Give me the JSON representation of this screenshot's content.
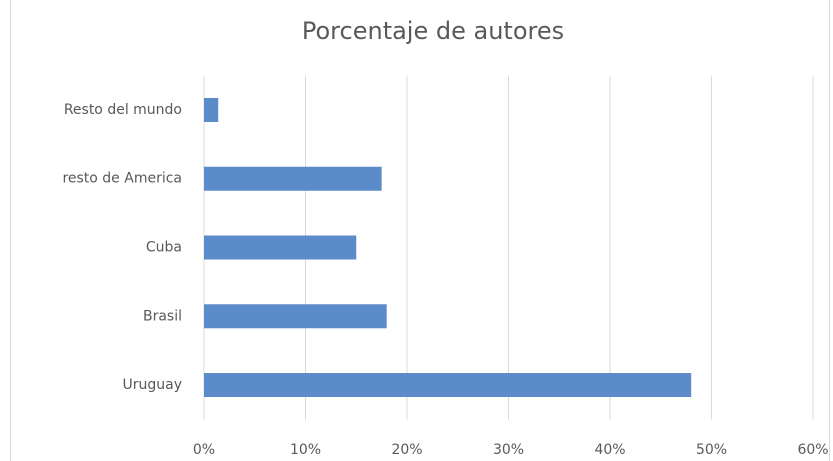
{
  "chart_data": {
    "type": "bar",
    "orientation": "horizontal",
    "title": "Porcentaje de autores",
    "categories": [
      "Uruguay",
      "Brasil",
      "Cuba",
      "resto de America",
      "Resto del mundo"
    ],
    "values": [
      48,
      18,
      15,
      17.5,
      1.4
    ],
    "color": "#5b8bc9",
    "xlim": [
      0,
      60
    ],
    "xticks": [
      {
        "value": 0,
        "label": "0%"
      },
      {
        "value": 10,
        "label": "10%"
      },
      {
        "value": 20,
        "label": "20%"
      },
      {
        "value": 30,
        "label": "30%"
      },
      {
        "value": 40,
        "label": "40%"
      },
      {
        "value": 50,
        "label": "50%"
      },
      {
        "value": 60,
        "label": "60%"
      }
    ],
    "grid": true
  }
}
